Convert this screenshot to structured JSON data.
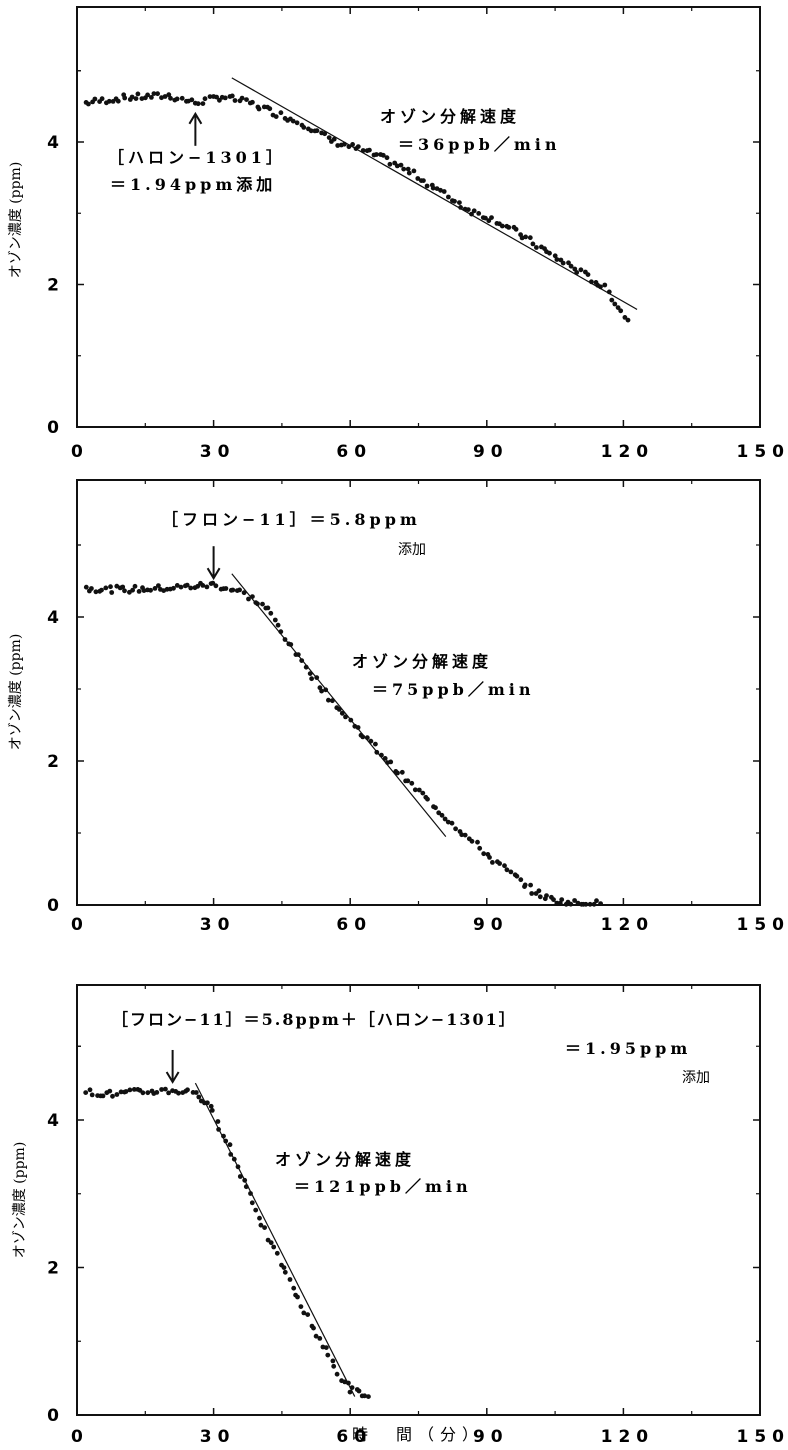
{
  "x_axis_title": "時　間（分）",
  "chart_data": [
    {
      "type": "scatter",
      "ylabel": "オゾン濃度 (ppm)",
      "xlim": [
        0,
        150
      ],
      "ylim": [
        0,
        6
      ],
      "x_ticks": [
        0,
        30,
        60,
        90,
        120,
        150
      ],
      "x_tick_labels": [
        "0",
        "30",
        "60",
        "90",
        "120",
        "150"
      ],
      "y_ticks": [
        0,
        2,
        4
      ],
      "y_tick_labels": [
        "0",
        "2",
        "4"
      ],
      "event_minute": 26,
      "arrow_direction": "up",
      "flat_level": 4.62,
      "fit_line": {
        "x": [
          34,
          123
        ],
        "y": [
          4.9,
          1.65
        ]
      },
      "series": [
        {
          "x": [
            2,
            10,
            20,
            26,
            32,
            38,
            44,
            50,
            56,
            62,
            68,
            74,
            80,
            86,
            92,
            98,
            104,
            110,
            116,
            121
          ],
          "y": [
            4.55,
            4.62,
            4.65,
            4.55,
            4.64,
            4.55,
            4.4,
            4.25,
            4.02,
            3.9,
            3.75,
            3.55,
            3.3,
            3.05,
            2.9,
            2.68,
            2.42,
            2.2,
            1.95,
            1.5
          ]
        }
      ],
      "annotations": {
        "event_line1": "［ハロン−1301］",
        "event_line2": "＝1.94ppm添加",
        "rate_line1": "オゾン分解速度",
        "rate_line2": "＝36ppb／min"
      }
    },
    {
      "type": "scatter",
      "ylabel": "オゾン濃度 (ppm)",
      "xlim": [
        0,
        150
      ],
      "ylim": [
        0,
        6
      ],
      "x_ticks": [
        0,
        30,
        60,
        90,
        120,
        150
      ],
      "x_tick_labels": [
        "0",
        "30",
        "60",
        "90",
        "120",
        "150"
      ],
      "y_ticks": [
        0,
        2,
        4
      ],
      "y_tick_labels": [
        "0",
        "2",
        "4"
      ],
      "event_minute": 30,
      "arrow_direction": "down",
      "flat_level": 4.4,
      "fit_line": {
        "x": [
          34,
          81
        ],
        "y": [
          4.6,
          0.95
        ]
      },
      "series": [
        {
          "x": [
            2,
            10,
            20,
            30,
            36,
            42,
            48,
            54,
            60,
            66,
            72,
            78,
            84,
            90,
            96,
            100,
            104,
            108,
            112,
            115
          ],
          "y": [
            4.4,
            4.38,
            4.4,
            4.45,
            4.35,
            4.1,
            3.5,
            3.0,
            2.55,
            2.15,
            1.75,
            1.4,
            1.05,
            0.7,
            0.4,
            0.2,
            0.08,
            0.03,
            0.02,
            0.02
          ]
        }
      ],
      "annotations": {
        "event_line1": "［フロン−11］＝5.8ppm",
        "event_line2": "添加",
        "rate_line1": "オゾン分解速度",
        "rate_line2": "＝75ppb／min"
      }
    },
    {
      "type": "scatter",
      "ylabel": "オゾン濃度 (ppm)",
      "xlim": [
        0,
        150
      ],
      "ylim": [
        0,
        6
      ],
      "x_ticks": [
        0,
        30,
        60,
        90,
        120,
        150
      ],
      "x_tick_labels": [
        "0",
        "30",
        "60",
        "90",
        "120",
        "150"
      ],
      "y_ticks": [
        0,
        2,
        4
      ],
      "y_tick_labels": [
        "0",
        "2",
        "4"
      ],
      "event_minute": 21,
      "arrow_direction": "down",
      "flat_level": 4.38,
      "fit_line": {
        "x": [
          26,
          61
        ],
        "y": [
          4.5,
          0.25
        ]
      },
      "series": [
        {
          "x": [
            2,
            8,
            14,
            20,
            26,
            30,
            34,
            38,
            42,
            46,
            50,
            54,
            58,
            60,
            62,
            64
          ],
          "y": [
            4.38,
            4.35,
            4.38,
            4.4,
            4.38,
            4.1,
            3.55,
            3.0,
            2.4,
            1.9,
            1.4,
            0.95,
            0.5,
            0.35,
            0.3,
            0.25
          ]
        }
      ],
      "annotations": {
        "event_line1": "［フロン−11］＝5.8ppm＋［ハロン−1301］",
        "event_line2": "＝1.95ppm",
        "event_line3": "添加",
        "rate_line1": "オゾン分解速度",
        "rate_line2": "＝121ppb／min"
      }
    }
  ]
}
